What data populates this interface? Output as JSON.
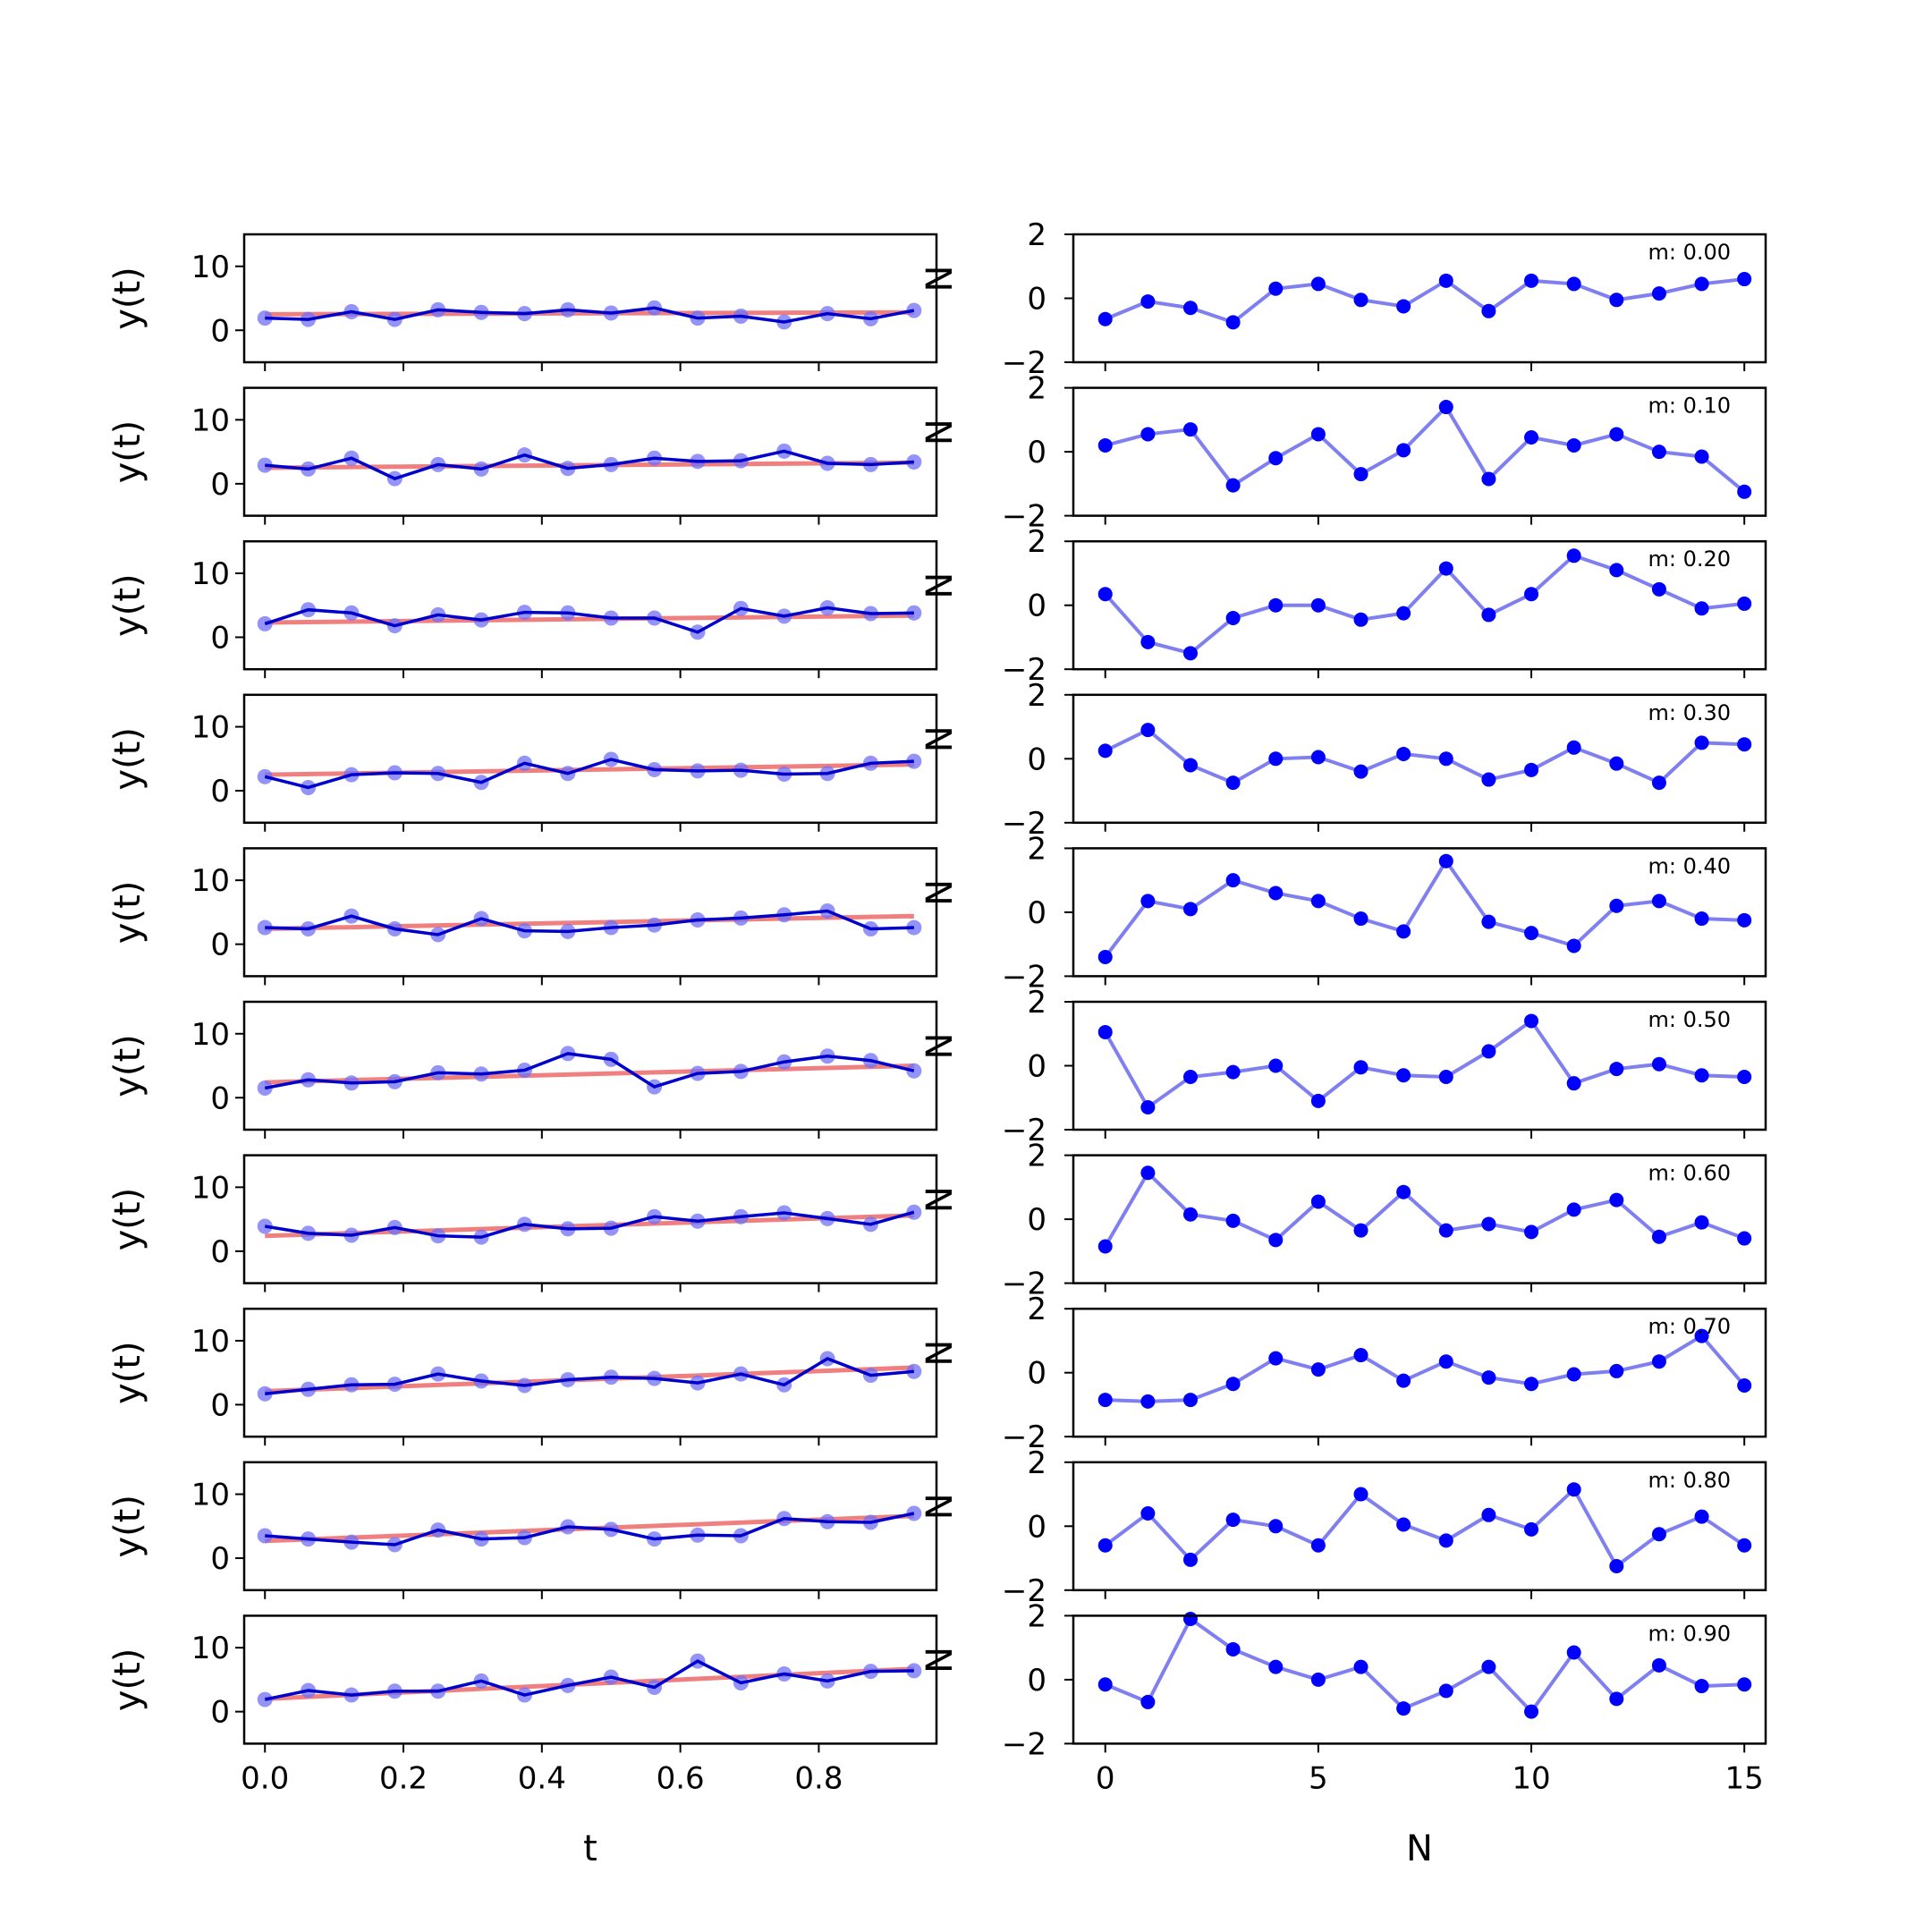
{
  "figure": {
    "left_xlabel": "t",
    "right_xlabel": "N",
    "left_ylabel": "y(t)",
    "right_ylabel": "N"
  },
  "colors": {
    "fit_line": "#f08080",
    "marker_faded": "#6f6ff5",
    "series_line": "#0000cc",
    "resid_line": "#7f7ff0",
    "resid_marker": "#0000ff"
  },
  "chart_data": [
    {
      "type": "line",
      "panel": "time-series",
      "xlabel": "t",
      "ylabel": "y(t)",
      "xlim": [
        -0.03,
        0.97
      ],
      "ylim": [
        -5,
        15
      ],
      "xticks": [
        "0.0",
        "0.2",
        "0.4",
        "0.6",
        "0.8"
      ],
      "yticks": [
        "0",
        "10"
      ],
      "x": [
        0.0,
        0.0625,
        0.125,
        0.1875,
        0.25,
        0.3125,
        0.375,
        0.4375,
        0.5,
        0.5625,
        0.625,
        0.6875,
        0.75,
        0.8125,
        0.875,
        0.9375
      ],
      "rows": [
        {
          "fit": [
            2.5,
            2.8
          ],
          "y": [
            1.9,
            1.7,
            2.9,
            1.7,
            3.2,
            2.8,
            2.6,
            3.2,
            2.7,
            3.5,
            1.9,
            2.2,
            1.3,
            2.6,
            1.8,
            3.1
          ]
        },
        {
          "fit": [
            2.5,
            3.3
          ],
          "y": [
            2.9,
            2.3,
            4.0,
            0.8,
            3.0,
            2.3,
            4.5,
            2.4,
            3.0,
            4.0,
            3.5,
            3.6,
            5.1,
            3.2,
            3.0,
            3.4
          ]
        },
        {
          "fit": [
            2.3,
            3.4
          ],
          "y": [
            2.1,
            4.3,
            3.8,
            1.8,
            3.5,
            2.7,
            3.9,
            3.8,
            3.0,
            3.0,
            0.8,
            4.5,
            3.3,
            4.6,
            3.7,
            3.8
          ]
        },
        {
          "fit": [
            2.5,
            4.1
          ],
          "y": [
            2.2,
            0.5,
            2.5,
            2.8,
            2.7,
            1.3,
            4.3,
            2.7,
            4.9,
            3.3,
            3.1,
            3.2,
            2.6,
            2.7,
            4.3,
            4.6
          ]
        },
        {
          "fit": [
            2.4,
            4.4
          ],
          "y": [
            2.6,
            2.4,
            4.4,
            2.4,
            1.5,
            4.0,
            2.1,
            2.0,
            2.6,
            3.0,
            3.8,
            4.1,
            4.6,
            5.2,
            2.4,
            2.6
          ]
        },
        {
          "fit": [
            2.4,
            5.0
          ],
          "y": [
            1.5,
            2.8,
            2.3,
            2.5,
            3.9,
            3.7,
            4.3,
            6.9,
            6.0,
            1.7,
            3.8,
            4.1,
            5.6,
            6.5,
            5.8,
            4.2
          ]
        },
        {
          "fit": [
            2.4,
            5.6
          ],
          "y": [
            3.9,
            2.8,
            2.5,
            3.7,
            2.4,
            2.2,
            4.2,
            3.5,
            3.6,
            5.4,
            4.7,
            5.4,
            6.0,
            5.1,
            4.2,
            6.1
          ]
        },
        {
          "fit": [
            2.1,
            5.8
          ],
          "y": [
            1.7,
            2.4,
            3.1,
            3.2,
            4.8,
            3.7,
            3.0,
            3.9,
            4.3,
            4.1,
            3.4,
            4.8,
            3.1,
            7.2,
            4.6,
            5.2
          ]
        },
        {
          "fit": [
            2.7,
            6.6
          ],
          "y": [
            3.5,
            3.0,
            2.5,
            2.1,
            4.4,
            3.0,
            3.2,
            4.9,
            4.5,
            3.0,
            3.6,
            3.5,
            6.2,
            5.7,
            5.6,
            7.0
          ]
        },
        {
          "fit": [
            2.0,
            6.7
          ],
          "y": [
            1.9,
            3.3,
            2.6,
            3.2,
            3.2,
            4.8,
            2.6,
            4.1,
            5.4,
            3.8,
            7.9,
            4.5,
            5.9,
            4.8,
            6.3,
            6.4
          ]
        }
      ]
    },
    {
      "type": "line",
      "panel": "residuals",
      "xlabel": "N",
      "ylabel": "N",
      "xlim": [
        -0.75,
        15.5
      ],
      "ylim": [
        -2,
        2
      ],
      "xticks": [
        "0",
        "5",
        "10",
        "15"
      ],
      "yticks": [
        "2",
        "0",
        "−2"
      ],
      "x": [
        0,
        1,
        2,
        3,
        4,
        5,
        6,
        7,
        8,
        9,
        10,
        11,
        12,
        13,
        14,
        15
      ],
      "rows": [
        {
          "label": "m: 0.00",
          "values": [
            -0.65,
            -0.1,
            -0.3,
            -0.75,
            0.3,
            0.45,
            -0.05,
            -0.25,
            0.55,
            -0.4,
            0.55,
            0.45,
            -0.05,
            0.15,
            0.45,
            0.6
          ]
        },
        {
          "label": "m: 0.10",
          "values": [
            0.2,
            0.55,
            0.7,
            -1.05,
            -0.2,
            0.55,
            -0.7,
            0.05,
            1.4,
            -0.85,
            0.45,
            0.2,
            0.55,
            0.0,
            -0.15,
            -1.25
          ]
        },
        {
          "label": "m: 0.20",
          "values": [
            0.35,
            -1.15,
            -1.5,
            -0.4,
            0.0,
            0.0,
            -0.45,
            -0.25,
            1.15,
            -0.3,
            0.35,
            1.55,
            1.1,
            0.5,
            -0.1,
            0.05
          ]
        },
        {
          "label": "m: 0.30",
          "values": [
            0.25,
            0.9,
            -0.2,
            -0.75,
            0.0,
            0.05,
            -0.4,
            0.15,
            0.0,
            -0.65,
            -0.35,
            0.35,
            -0.15,
            -0.75,
            0.5,
            0.45
          ]
        },
        {
          "label": "m: 0.40",
          "values": [
            -1.4,
            0.35,
            0.1,
            1.0,
            0.6,
            0.35,
            -0.2,
            -0.6,
            1.6,
            -0.3,
            -0.65,
            -1.05,
            0.2,
            0.35,
            -0.2,
            -0.25
          ]
        },
        {
          "label": "m: 0.50",
          "values": [
            1.05,
            -1.3,
            -0.35,
            -0.2,
            0.0,
            -1.1,
            -0.05,
            -0.3,
            -0.35,
            0.45,
            1.4,
            -0.55,
            -0.1,
            0.05,
            -0.3,
            -0.35
          ]
        },
        {
          "label": "m: 0.60",
          "values": [
            -0.85,
            1.45,
            0.15,
            -0.05,
            -0.65,
            0.55,
            -0.35,
            0.85,
            -0.35,
            -0.15,
            -0.4,
            0.3,
            0.6,
            -0.55,
            -0.1,
            -0.6
          ]
        },
        {
          "label": "m: 0.70",
          "values": [
            -0.85,
            -0.9,
            -0.85,
            -0.35,
            0.45,
            0.1,
            0.55,
            -0.25,
            0.35,
            -0.15,
            -0.35,
            -0.05,
            0.05,
            0.35,
            1.15,
            -0.4
          ]
        },
        {
          "label": "m: 0.80",
          "values": [
            -0.6,
            0.4,
            -1.05,
            0.2,
            0.0,
            -0.6,
            1.0,
            0.05,
            -0.45,
            0.35,
            -0.1,
            1.15,
            -1.25,
            -0.25,
            0.3,
            -0.6
          ]
        },
        {
          "label": "m: 0.90",
          "values": [
            -0.15,
            -0.7,
            1.9,
            0.95,
            0.4,
            0.0,
            0.4,
            -0.9,
            -0.35,
            0.4,
            -1.0,
            0.85,
            -0.6,
            0.45,
            -0.2,
            -0.15
          ]
        }
      ]
    }
  ]
}
